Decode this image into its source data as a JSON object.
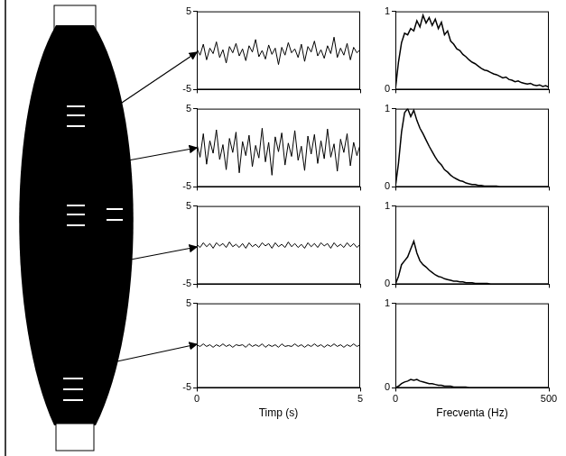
{
  "chart_data": [
    {
      "type": "line",
      "color": "#000000",
      "tick_labels": "y",
      "xlim": [
        0,
        5
      ],
      "xticks": [
        0,
        5
      ],
      "ylim": [
        -5,
        5
      ],
      "yticks": [
        -5,
        5
      ],
      "x": [
        0,
        0.1,
        0.2,
        0.3,
        0.4,
        0.5,
        0.6,
        0.7,
        0.8,
        0.9,
        1.0,
        1.1,
        1.2,
        1.3,
        1.4,
        1.5,
        1.6,
        1.7,
        1.8,
        1.9,
        2.0,
        2.1,
        2.2,
        2.3,
        2.4,
        2.5,
        2.6,
        2.7,
        2.8,
        2.9,
        3.0,
        3.1,
        3.2,
        3.3,
        3.4,
        3.5,
        3.6,
        3.7,
        3.8,
        3.9,
        4.0,
        4.1,
        4.2,
        4.3,
        4.4,
        4.5,
        4.6,
        4.7,
        4.8,
        4.9,
        5.0
      ],
      "values": [
        0.2,
        -0.6,
        0.8,
        -1.2,
        0.3,
        -0.4,
        1.1,
        -0.9,
        0.1,
        -1.6,
        0.5,
        -0.3,
        0.9,
        -0.7,
        0.2,
        -1.3,
        0.6,
        -0.2,
        1.4,
        -0.8,
        0.0,
        -1.1,
        0.7,
        -0.5,
        0.3,
        -1.8,
        0.4,
        -0.6,
        1.0,
        -0.3,
        0.2,
        -0.9,
        0.8,
        -1.4,
        0.5,
        -0.2,
        1.2,
        -0.7,
        0.1,
        -1.0,
        0.6,
        -0.4,
        1.7,
        -0.9,
        0.3,
        -0.6,
        0.9,
        -1.2,
        0.4,
        -0.3,
        0.1
      ]
    },
    {
      "type": "line",
      "color": "#000000",
      "tick_labels": "y",
      "xlim": [
        0,
        5
      ],
      "xticks": [
        0,
        5
      ],
      "ylim": [
        -5,
        5
      ],
      "yticks": [
        -5,
        5
      ],
      "x": [
        0,
        0.1,
        0.2,
        0.3,
        0.4,
        0.5,
        0.6,
        0.7,
        0.8,
        0.9,
        1.0,
        1.1,
        1.2,
        1.3,
        1.4,
        1.5,
        1.6,
        1.7,
        1.8,
        1.9,
        2.0,
        2.1,
        2.2,
        2.3,
        2.4,
        2.5,
        2.6,
        2.7,
        2.8,
        2.9,
        3.0,
        3.1,
        3.2,
        3.3,
        3.4,
        3.5,
        3.6,
        3.7,
        3.8,
        3.9,
        4.0,
        4.1,
        4.2,
        4.3,
        4.4,
        4.5,
        4.6,
        4.7,
        4.8,
        4.9,
        5.0
      ],
      "values": [
        0.5,
        -1.2,
        1.8,
        -2.1,
        0.9,
        -0.7,
        2.3,
        -1.5,
        0.4,
        -2.8,
        1.2,
        -0.6,
        2.0,
        -3.2,
        0.8,
        -1.0,
        1.6,
        -2.4,
        0.3,
        -1.3,
        2.5,
        -1.8,
        0.7,
        -3.5,
        1.4,
        -0.5,
        1.9,
        -2.2,
        0.6,
        -1.1,
        2.2,
        -1.6,
        0.2,
        -2.9,
        1.5,
        -0.8,
        1.7,
        -2.0,
        0.9,
        -1.4,
        2.4,
        -1.2,
        0.5,
        -3.0,
        1.1,
        -0.6,
        1.8,
        -2.3,
        0.7,
        -1.0,
        0.4
      ]
    },
    {
      "type": "line",
      "color": "#000000",
      "tick_labels": "y",
      "xlim": [
        0,
        5
      ],
      "xticks": [
        0,
        5
      ],
      "ylim": [
        -5,
        5
      ],
      "yticks": [
        -5,
        5
      ],
      "x": [
        0,
        0.1,
        0.2,
        0.3,
        0.4,
        0.5,
        0.6,
        0.7,
        0.8,
        0.9,
        1.0,
        1.1,
        1.2,
        1.3,
        1.4,
        1.5,
        1.6,
        1.7,
        1.8,
        1.9,
        2.0,
        2.1,
        2.2,
        2.3,
        2.4,
        2.5,
        2.6,
        2.7,
        2.8,
        2.9,
        3.0,
        3.1,
        3.2,
        3.3,
        3.4,
        3.5,
        3.6,
        3.7,
        3.8,
        3.9,
        4.0,
        4.1,
        4.2,
        4.3,
        4.4,
        4.5,
        4.6,
        4.7,
        4.8,
        4.9,
        5.0
      ],
      "values": [
        0.1,
        -0.3,
        0.3,
        -0.2,
        0.2,
        -0.4,
        0.3,
        -0.1,
        0.2,
        -0.3,
        0.4,
        -0.2,
        0.1,
        -0.3,
        0.2,
        -0.4,
        0.3,
        -0.2,
        0.1,
        -0.3,
        0.3,
        -0.1,
        0.2,
        -0.4,
        0.3,
        -0.2,
        0.1,
        -0.3,
        0.4,
        -0.2,
        0.2,
        -0.3,
        0.1,
        -0.4,
        0.3,
        -0.2,
        0.2,
        -0.3,
        0.3,
        -0.1,
        0.2,
        -0.4,
        0.3,
        -0.2,
        0.1,
        -0.3,
        0.3,
        -0.2,
        0.2,
        -0.3,
        0.1
      ]
    },
    {
      "type": "line",
      "color": "#000000",
      "xlabel": "Timp (s)",
      "xlim": [
        0,
        5
      ],
      "xticks": [
        0,
        5
      ],
      "ylim": [
        -5,
        5
      ],
      "yticks": [
        -5,
        5
      ],
      "x": [
        0,
        0.1,
        0.2,
        0.3,
        0.4,
        0.5,
        0.6,
        0.7,
        0.8,
        0.9,
        1.0,
        1.1,
        1.2,
        1.3,
        1.4,
        1.5,
        1.6,
        1.7,
        1.8,
        1.9,
        2.0,
        2.1,
        2.2,
        2.3,
        2.4,
        2.5,
        2.6,
        2.7,
        2.8,
        2.9,
        3.0,
        3.1,
        3.2,
        3.3,
        3.4,
        3.5,
        3.6,
        3.7,
        3.8,
        3.9,
        4.0,
        4.1,
        4.2,
        4.3,
        4.4,
        4.5,
        4.6,
        4.7,
        4.8,
        4.9,
        5.0
      ],
      "values": [
        0.1,
        -0.1,
        0.2,
        -0.1,
        0.1,
        -0.2,
        0.1,
        -0.1,
        0.2,
        -0.1,
        0.1,
        -0.2,
        0.1,
        0.0,
        0.1,
        -0.2,
        0.2,
        -0.1,
        0.1,
        -0.1,
        0.2,
        -0.2,
        0.1,
        -0.1,
        0.1,
        -0.2,
        0.2,
        -0.1,
        0.0,
        -0.1,
        0.2,
        -0.1,
        0.1,
        -0.2,
        0.1,
        -0.1,
        0.2,
        -0.1,
        0.1,
        -0.2,
        0.1,
        -0.1,
        0.2,
        -0.1,
        0.1,
        -0.2,
        0.1,
        -0.1,
        0.2,
        -0.1,
        0.1
      ]
    },
    {
      "type": "line",
      "color": "#000000",
      "tick_labels": "y",
      "xlim": [
        0,
        500
      ],
      "xticks": [
        0,
        500
      ],
      "ylim": [
        0,
        1
      ],
      "yticks": [
        0,
        1
      ],
      "x": [
        0,
        10,
        20,
        30,
        40,
        50,
        60,
        70,
        80,
        90,
        100,
        110,
        120,
        130,
        140,
        150,
        160,
        170,
        180,
        190,
        200,
        210,
        220,
        230,
        240,
        250,
        260,
        270,
        280,
        290,
        300,
        310,
        320,
        330,
        340,
        350,
        360,
        370,
        380,
        390,
        400,
        410,
        420,
        430,
        440,
        450,
        460,
        470,
        480,
        490,
        500
      ],
      "values": [
        0,
        0.35,
        0.6,
        0.72,
        0.7,
        0.78,
        0.75,
        0.88,
        0.8,
        0.95,
        0.85,
        0.92,
        0.82,
        0.9,
        0.78,
        0.86,
        0.7,
        0.75,
        0.62,
        0.58,
        0.52,
        0.5,
        0.45,
        0.42,
        0.38,
        0.35,
        0.33,
        0.3,
        0.27,
        0.25,
        0.24,
        0.22,
        0.2,
        0.19,
        0.17,
        0.15,
        0.16,
        0.13,
        0.12,
        0.1,
        0.11,
        0.09,
        0.08,
        0.07,
        0.08,
        0.06,
        0.05,
        0.06,
        0.04,
        0.05,
        0.03
      ]
    },
    {
      "type": "line",
      "color": "#000000",
      "tick_labels": "y",
      "xlim": [
        0,
        500
      ],
      "xticks": [
        0,
        500
      ],
      "ylim": [
        0,
        1
      ],
      "yticks": [
        0,
        1
      ],
      "x": [
        0,
        10,
        20,
        30,
        40,
        50,
        60,
        70,
        80,
        90,
        100,
        110,
        120,
        130,
        140,
        150,
        160,
        170,
        180,
        190,
        200,
        210,
        220,
        230,
        240,
        250,
        260,
        270,
        280,
        290,
        300,
        310,
        320,
        330,
        340,
        350,
        360,
        370,
        380,
        390,
        400,
        410,
        420,
        430,
        440,
        450,
        460,
        470,
        480,
        490,
        500
      ],
      "values": [
        0,
        0.3,
        0.7,
        0.95,
        1.0,
        0.9,
        0.98,
        0.85,
        0.75,
        0.68,
        0.6,
        0.52,
        0.45,
        0.38,
        0.32,
        0.28,
        0.22,
        0.19,
        0.15,
        0.12,
        0.1,
        0.08,
        0.07,
        0.05,
        0.04,
        0.03,
        0.03,
        0.02,
        0.02,
        0.01,
        0.01,
        0.01,
        0.01,
        0.01,
        0,
        0,
        0,
        0,
        0,
        0,
        0,
        0,
        0,
        0,
        0,
        0,
        0,
        0,
        0,
        0,
        0
      ]
    },
    {
      "type": "line",
      "color": "#000000",
      "tick_labels": "y",
      "xlim": [
        0,
        500
      ],
      "xticks": [
        0,
        500
      ],
      "ylim": [
        0,
        1
      ],
      "yticks": [
        0,
        1
      ],
      "x": [
        0,
        10,
        20,
        30,
        40,
        50,
        60,
        70,
        80,
        90,
        100,
        110,
        120,
        130,
        140,
        150,
        160,
        170,
        180,
        190,
        200,
        210,
        220,
        230,
        240,
        250,
        260,
        270,
        280,
        290,
        300,
        310,
        320,
        330,
        340,
        350,
        360,
        370,
        380,
        390,
        400,
        410,
        420,
        430,
        440,
        450,
        460,
        470,
        480,
        490,
        500
      ],
      "values": [
        0,
        0.1,
        0.25,
        0.3,
        0.35,
        0.45,
        0.55,
        0.4,
        0.3,
        0.25,
        0.22,
        0.18,
        0.15,
        0.12,
        0.1,
        0.09,
        0.07,
        0.06,
        0.05,
        0.04,
        0.04,
        0.03,
        0.03,
        0.02,
        0.02,
        0.02,
        0.01,
        0.01,
        0.01,
        0.01,
        0.01,
        0,
        0,
        0,
        0,
        0,
        0,
        0,
        0,
        0,
        0,
        0,
        0,
        0,
        0,
        0,
        0,
        0,
        0,
        0,
        0
      ]
    },
    {
      "type": "line",
      "color": "#000000",
      "xlabel": "Frecventa (Hz)",
      "xlim": [
        0,
        500
      ],
      "xticks": [
        0,
        500
      ],
      "ylim": [
        0,
        1
      ],
      "yticks": [
        0,
        1
      ],
      "x": [
        0,
        10,
        20,
        30,
        40,
        50,
        60,
        70,
        80,
        90,
        100,
        110,
        120,
        130,
        140,
        150,
        160,
        170,
        180,
        190,
        200,
        210,
        220,
        230,
        240,
        250,
        260,
        270,
        280,
        290,
        300,
        310,
        320,
        330,
        340,
        350,
        360,
        370,
        380,
        390,
        400,
        410,
        420,
        430,
        440,
        450,
        460,
        470,
        480,
        490,
        500
      ],
      "values": [
        0,
        0.02,
        0.05,
        0.07,
        0.08,
        0.1,
        0.09,
        0.1,
        0.08,
        0.07,
        0.06,
        0.05,
        0.05,
        0.04,
        0.03,
        0.03,
        0.02,
        0.02,
        0.02,
        0.01,
        0.01,
        0.01,
        0.01,
        0.01,
        0,
        0,
        0,
        0,
        0,
        0,
        0,
        0,
        0,
        0,
        0,
        0,
        0,
        0,
        0,
        0,
        0,
        0,
        0,
        0,
        0,
        0,
        0,
        0,
        0,
        0,
        0
      ]
    }
  ]
}
